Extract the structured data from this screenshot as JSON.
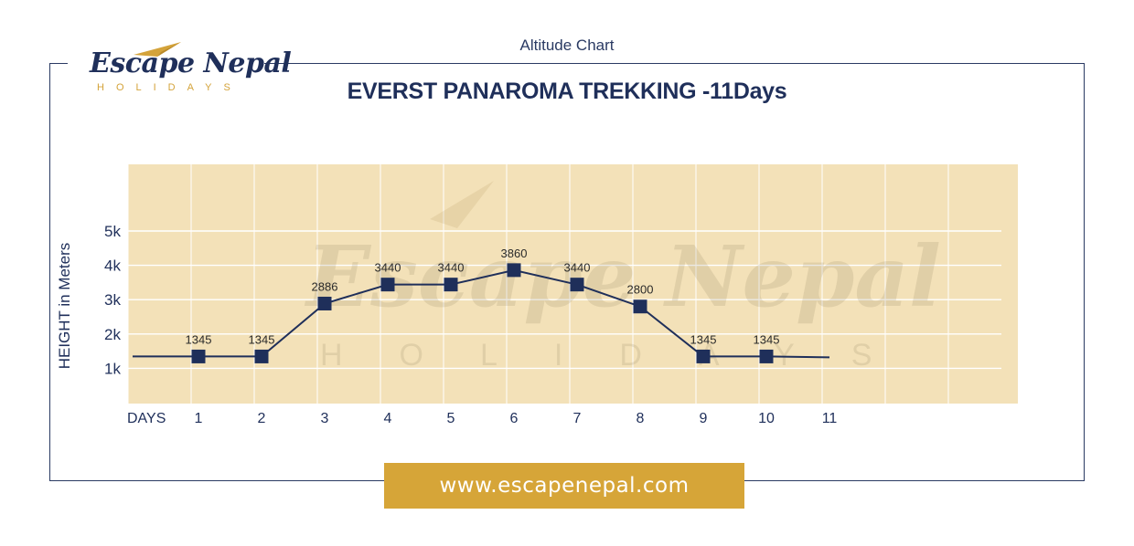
{
  "header": {
    "caption": "Altitude Chart",
    "logo_text": "Escape Nepal",
    "logo_subtext": "HOLIDAYS"
  },
  "colors": {
    "navy": "#1f2f5a",
    "gold": "#d6a538",
    "plot_bg": "#f3e1b8"
  },
  "chart_data": {
    "type": "line",
    "title": "EVERST PANAROMA TREKKING -11Days",
    "ylabel": "HEIGHT in Meters",
    "xlabel": "DAYS",
    "ytick_labels": [
      "1k",
      "2k",
      "3k",
      "4k",
      "5k"
    ],
    "ytick_values": [
      1000,
      2000,
      3000,
      4000,
      5000
    ],
    "x": [
      1,
      2,
      3,
      4,
      5,
      6,
      7,
      8,
      9,
      10,
      11
    ],
    "series": [
      {
        "values": [
          1345,
          1345,
          2886,
          3440,
          3440,
          3860,
          3440,
          2800,
          1345,
          1345,
          null
        ],
        "labels": [
          "1345",
          "1345",
          "2886",
          "3440",
          "3440",
          "3860",
          "3440",
          "2800",
          "1345",
          "1345",
          ""
        ]
      }
    ],
    "ylim": [
      0,
      6000
    ],
    "grid": true,
    "watermark": "Escape Nepal"
  },
  "footer": {
    "website": "www.escapenepal.com"
  }
}
